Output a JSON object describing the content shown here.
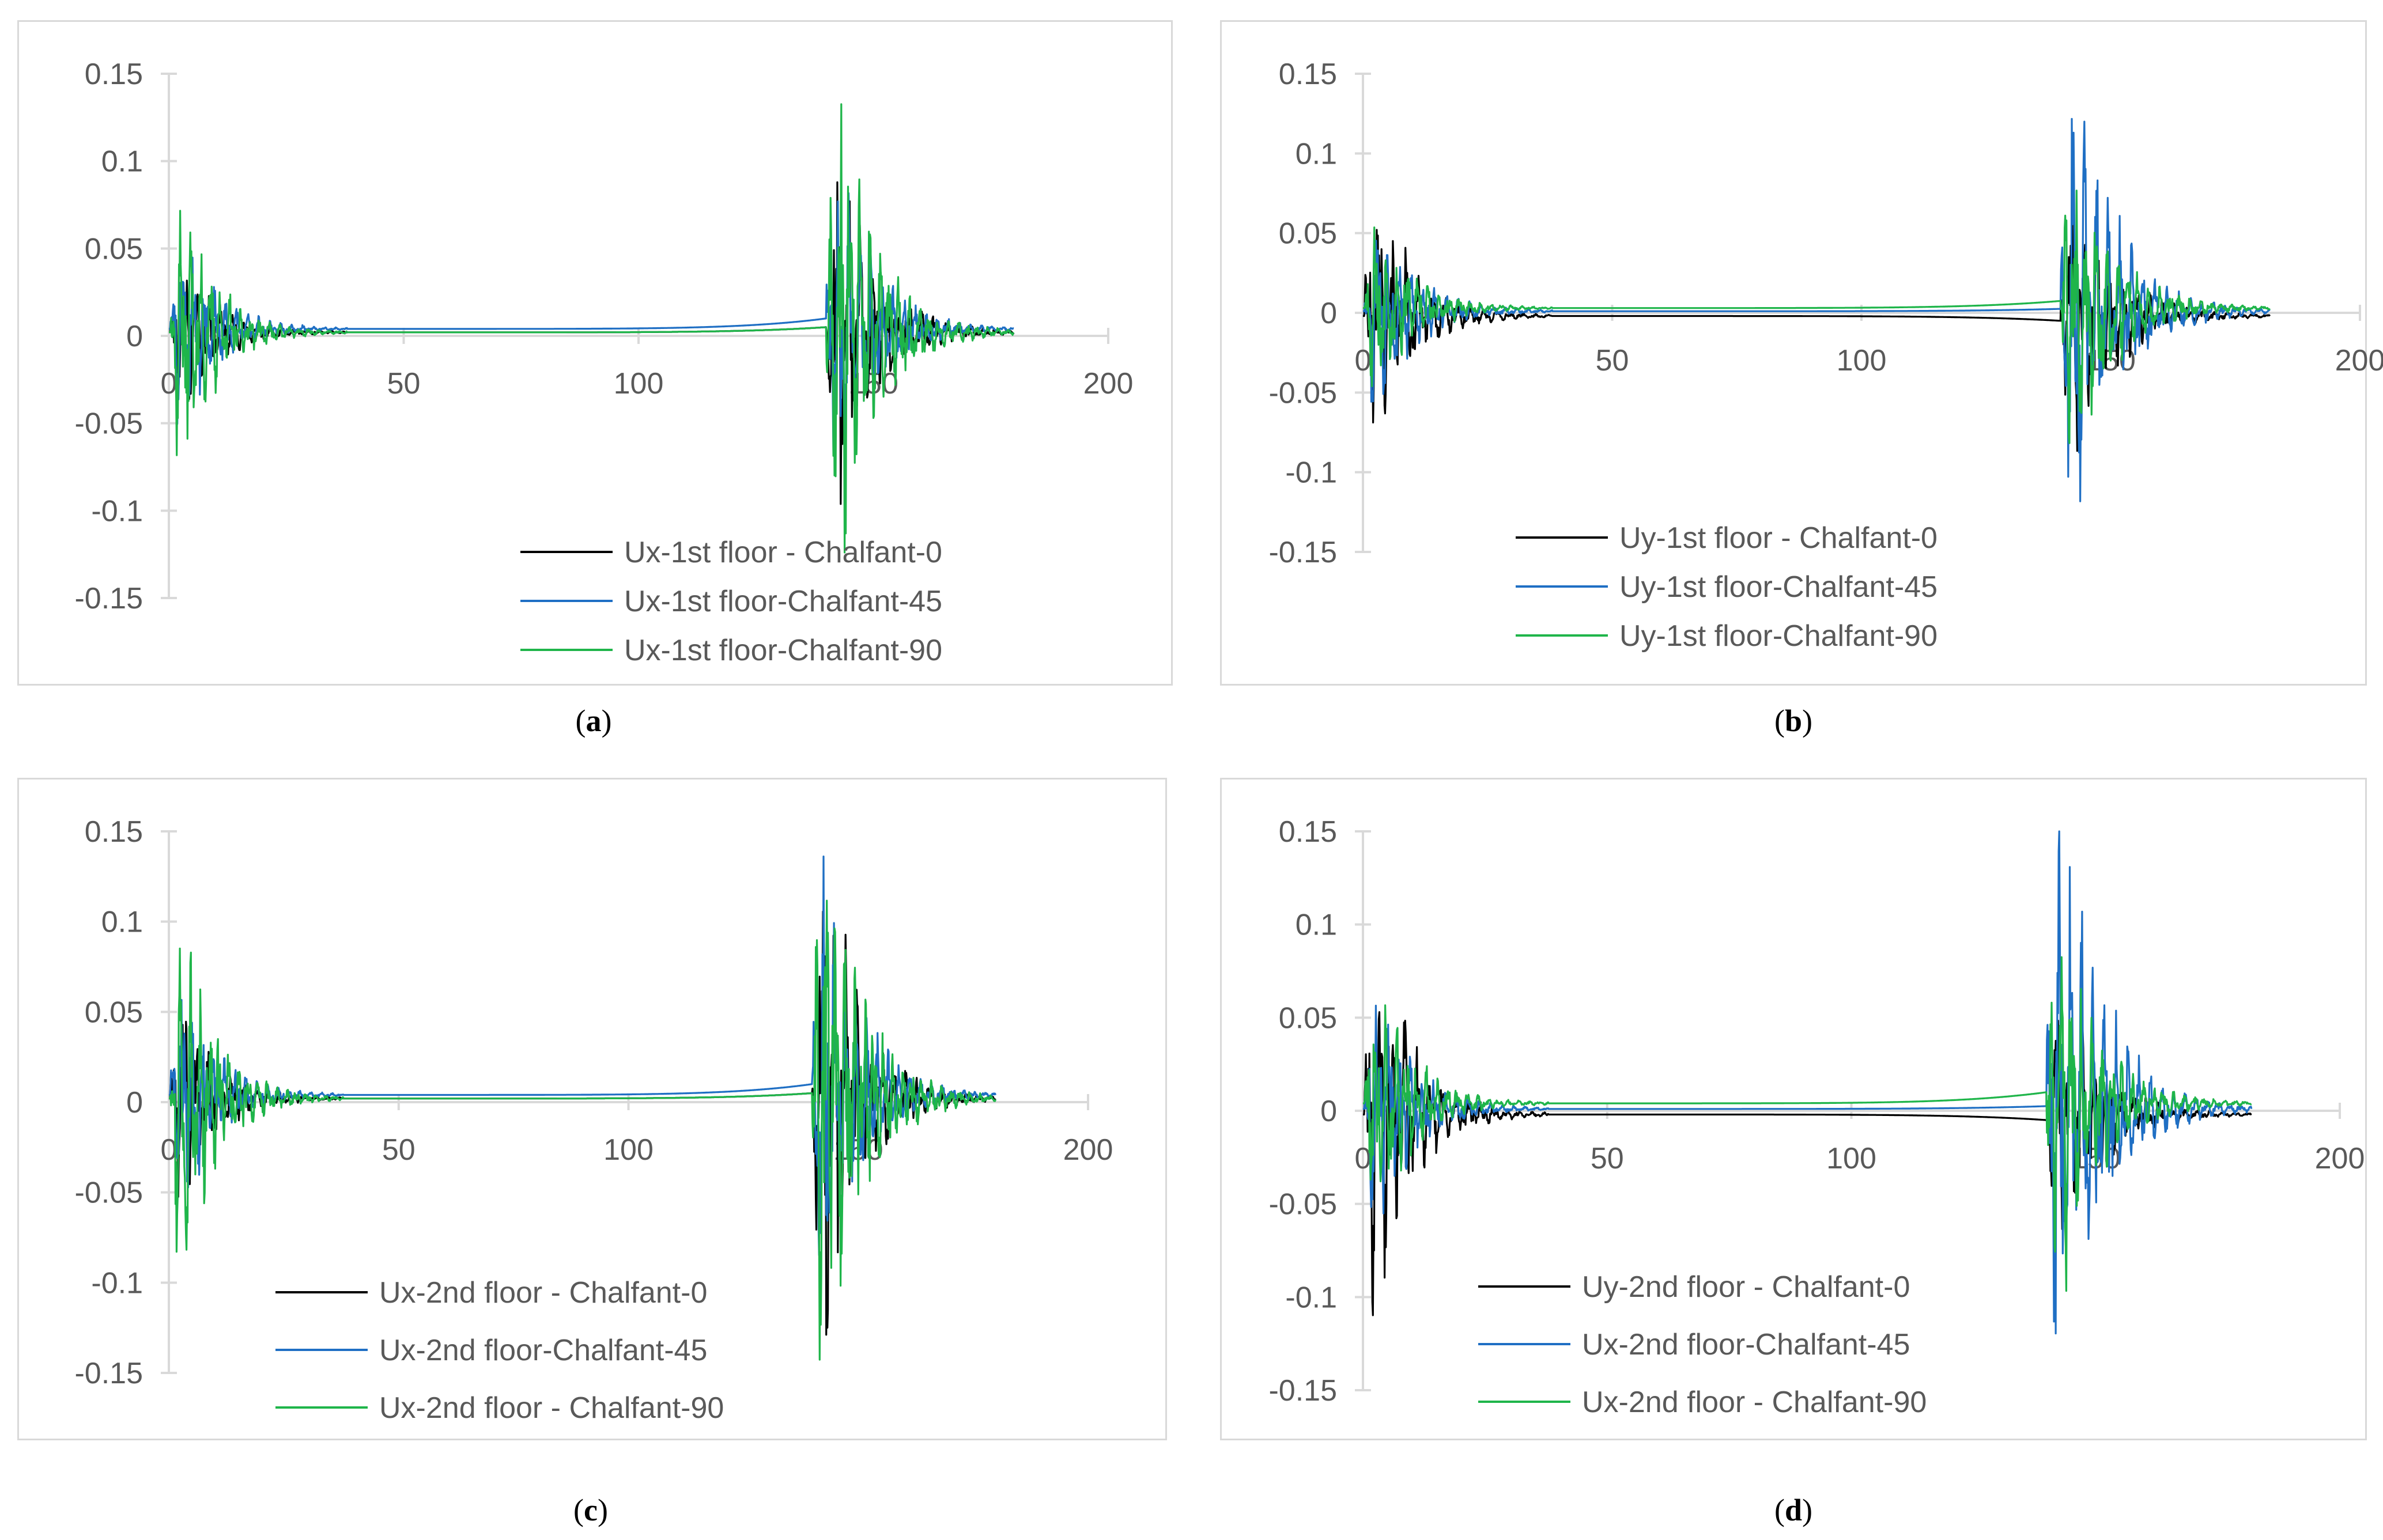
{
  "colors": {
    "series0": "#000000",
    "series45": "#1f6fc4",
    "series90": "#1fb54a",
    "axis": "#d9d9d9"
  },
  "captions": [
    "a",
    "b",
    "c",
    "d"
  ],
  "chart_data": [
    {
      "type": "line",
      "title": "",
      "xlabel": "",
      "ylabel": "",
      "xlim": [
        0,
        200
      ],
      "ylim": [
        -0.15,
        0.15
      ],
      "xticks": [
        0,
        50,
        100,
        150,
        200
      ],
      "yticks": [
        0.15,
        0.1,
        0.05,
        0,
        -0.05,
        -0.1,
        -0.15
      ],
      "xtick_labels": [
        "0",
        "50",
        "100",
        "150",
        "200"
      ],
      "ytick_labels": [
        "0.15",
        "0.1",
        "0.05",
        "0",
        "-0.05",
        "-0.1",
        "-0.15"
      ],
      "legend_position": "bottom-right",
      "series": [
        {
          "name": "Ux-1st floor - Chalfant-0",
          "color": "#000000",
          "baseline": 0.002,
          "bursts": [
            [
              0.3,
              38,
              0.04
            ],
            [
              140,
              180,
              0.09
            ]
          ],
          "seed": 11
        },
        {
          "name": "Ux-1st floor-Chalfant-45",
          "color": "#1f6fc4",
          "baseline": 0.004,
          "bursts": [
            [
              0.3,
              38,
              0.05
            ],
            [
              140,
              180,
              0.085
            ]
          ],
          "seed": 23
        },
        {
          "name": "Ux-1st floor-Chalfant-90",
          "color": "#1fb54a",
          "baseline": 0.002,
          "bursts": [
            [
              0.3,
              38,
              0.068
            ],
            [
              140,
              180,
              0.13
            ]
          ],
          "seed": 37
        }
      ]
    },
    {
      "type": "line",
      "title": "",
      "xlabel": "",
      "ylabel": "",
      "xlim": [
        0,
        200
      ],
      "ylim": [
        -0.15,
        0.15
      ],
      "xticks": [
        0,
        50,
        100,
        150,
        200
      ],
      "yticks": [
        0.15,
        0.1,
        0.05,
        0,
        -0.05,
        -0.1,
        -0.15
      ],
      "xtick_labels": [
        "0",
        "50",
        "100",
        "150",
        "200"
      ],
      "ytick_labels": [
        "0.15",
        "0.1",
        "0.05",
        "0",
        "-0.05",
        "-0.1",
        "-0.15"
      ],
      "legend_position": "bottom-right",
      "series": [
        {
          "name": "Uy-1st floor - Chalfant-0",
          "color": "#000000",
          "baseline": -0.002,
          "bursts": [
            [
              0.3,
              38,
              0.07
            ],
            [
              140,
              182,
              0.07
            ]
          ],
          "seed": 41
        },
        {
          "name": "Uy-1st floor-Chalfant-45",
          "color": "#1f6fc4",
          "baseline": 0.001,
          "bursts": [
            [
              0.3,
              38,
              0.06
            ],
            [
              140,
              182,
              0.13
            ]
          ],
          "seed": 53
        },
        {
          "name": "Uy-1st floor-Chalfant-90",
          "color": "#1fb54a",
          "baseline": 0.003,
          "bursts": [
            [
              0.3,
              38,
              0.05
            ],
            [
              140,
              182,
              0.085
            ]
          ],
          "seed": 67
        }
      ]
    },
    {
      "type": "line",
      "title": "",
      "xlabel": "",
      "ylabel": "",
      "xlim": [
        0,
        200
      ],
      "ylim": [
        -0.15,
        0.15
      ],
      "xticks": [
        0,
        50,
        100,
        150,
        200
      ],
      "yticks": [
        0.15,
        0.1,
        0.05,
        0,
        -0.05,
        -0.1,
        -0.15
      ],
      "xtick_labels": [
        "0",
        "50",
        "100",
        "150",
        "200"
      ],
      "ytick_labels": [
        "0.15",
        "0.1",
        "0.05",
        "0",
        "-0.05",
        "-0.1",
        "-0.15"
      ],
      "legend_position": "bottom-right",
      "series": [
        {
          "name": "Ux-2nd floor - Chalfant-0",
          "color": "#000000",
          "baseline": 0.002,
          "bursts": [
            [
              0.3,
              38,
              0.05
            ],
            [
              140,
              180,
              0.118
            ]
          ],
          "seed": 71
        },
        {
          "name": "Ux-2nd floor-Chalfant-45",
          "color": "#1f6fc4",
          "baseline": 0.004,
          "bursts": [
            [
              0.3,
              38,
              0.06
            ],
            [
              140,
              180,
              0.11
            ]
          ],
          "seed": 83
        },
        {
          "name": "Ux-2nd floor - Chalfant-90",
          "color": "#1fb54a",
          "baseline": 0.002,
          "bursts": [
            [
              0.3,
              38,
              0.088
            ],
            [
              140,
              180,
              0.15
            ]
          ],
          "seed": 97
        }
      ]
    },
    {
      "type": "line",
      "title": "",
      "xlabel": "",
      "ylabel": "",
      "xlim": [
        0,
        200
      ],
      "ylim": [
        -0.15,
        0.15
      ],
      "xticks": [
        0,
        50,
        100,
        150,
        200
      ],
      "yticks": [
        0.15,
        0.1,
        0.05,
        0,
        -0.05,
        -0.1,
        -0.15
      ],
      "xtick_labels": [
        "0",
        "50",
        "100",
        "150",
        "200"
      ],
      "ytick_labels": [
        "0.15",
        "0.1",
        "0.05",
        "0",
        "-0.05",
        "-0.1",
        "-0.15"
      ],
      "legend_position": "bottom-right",
      "series": [
        {
          "name": "Uy-2nd floor - Chalfant-0",
          "color": "#000000",
          "baseline": -0.002,
          "bursts": [
            [
              0.3,
              38,
              0.088
            ],
            [
              140,
              182,
              0.06
            ]
          ],
          "seed": 101
        },
        {
          "name": "Ux-2nd floor-Chalfant-45",
          "color": "#1f6fc4",
          "baseline": 0.001,
          "bursts": [
            [
              0.3,
              38,
              0.06
            ],
            [
              140,
              182,
              0.15
            ]
          ],
          "seed": 113
        },
        {
          "name": "Ux-2nd floor - Chalfant-90",
          "color": "#1fb54a",
          "baseline": 0.004,
          "bursts": [
            [
              0.3,
              38,
              0.06
            ],
            [
              140,
              182,
              0.085
            ]
          ],
          "seed": 127
        }
      ]
    }
  ]
}
